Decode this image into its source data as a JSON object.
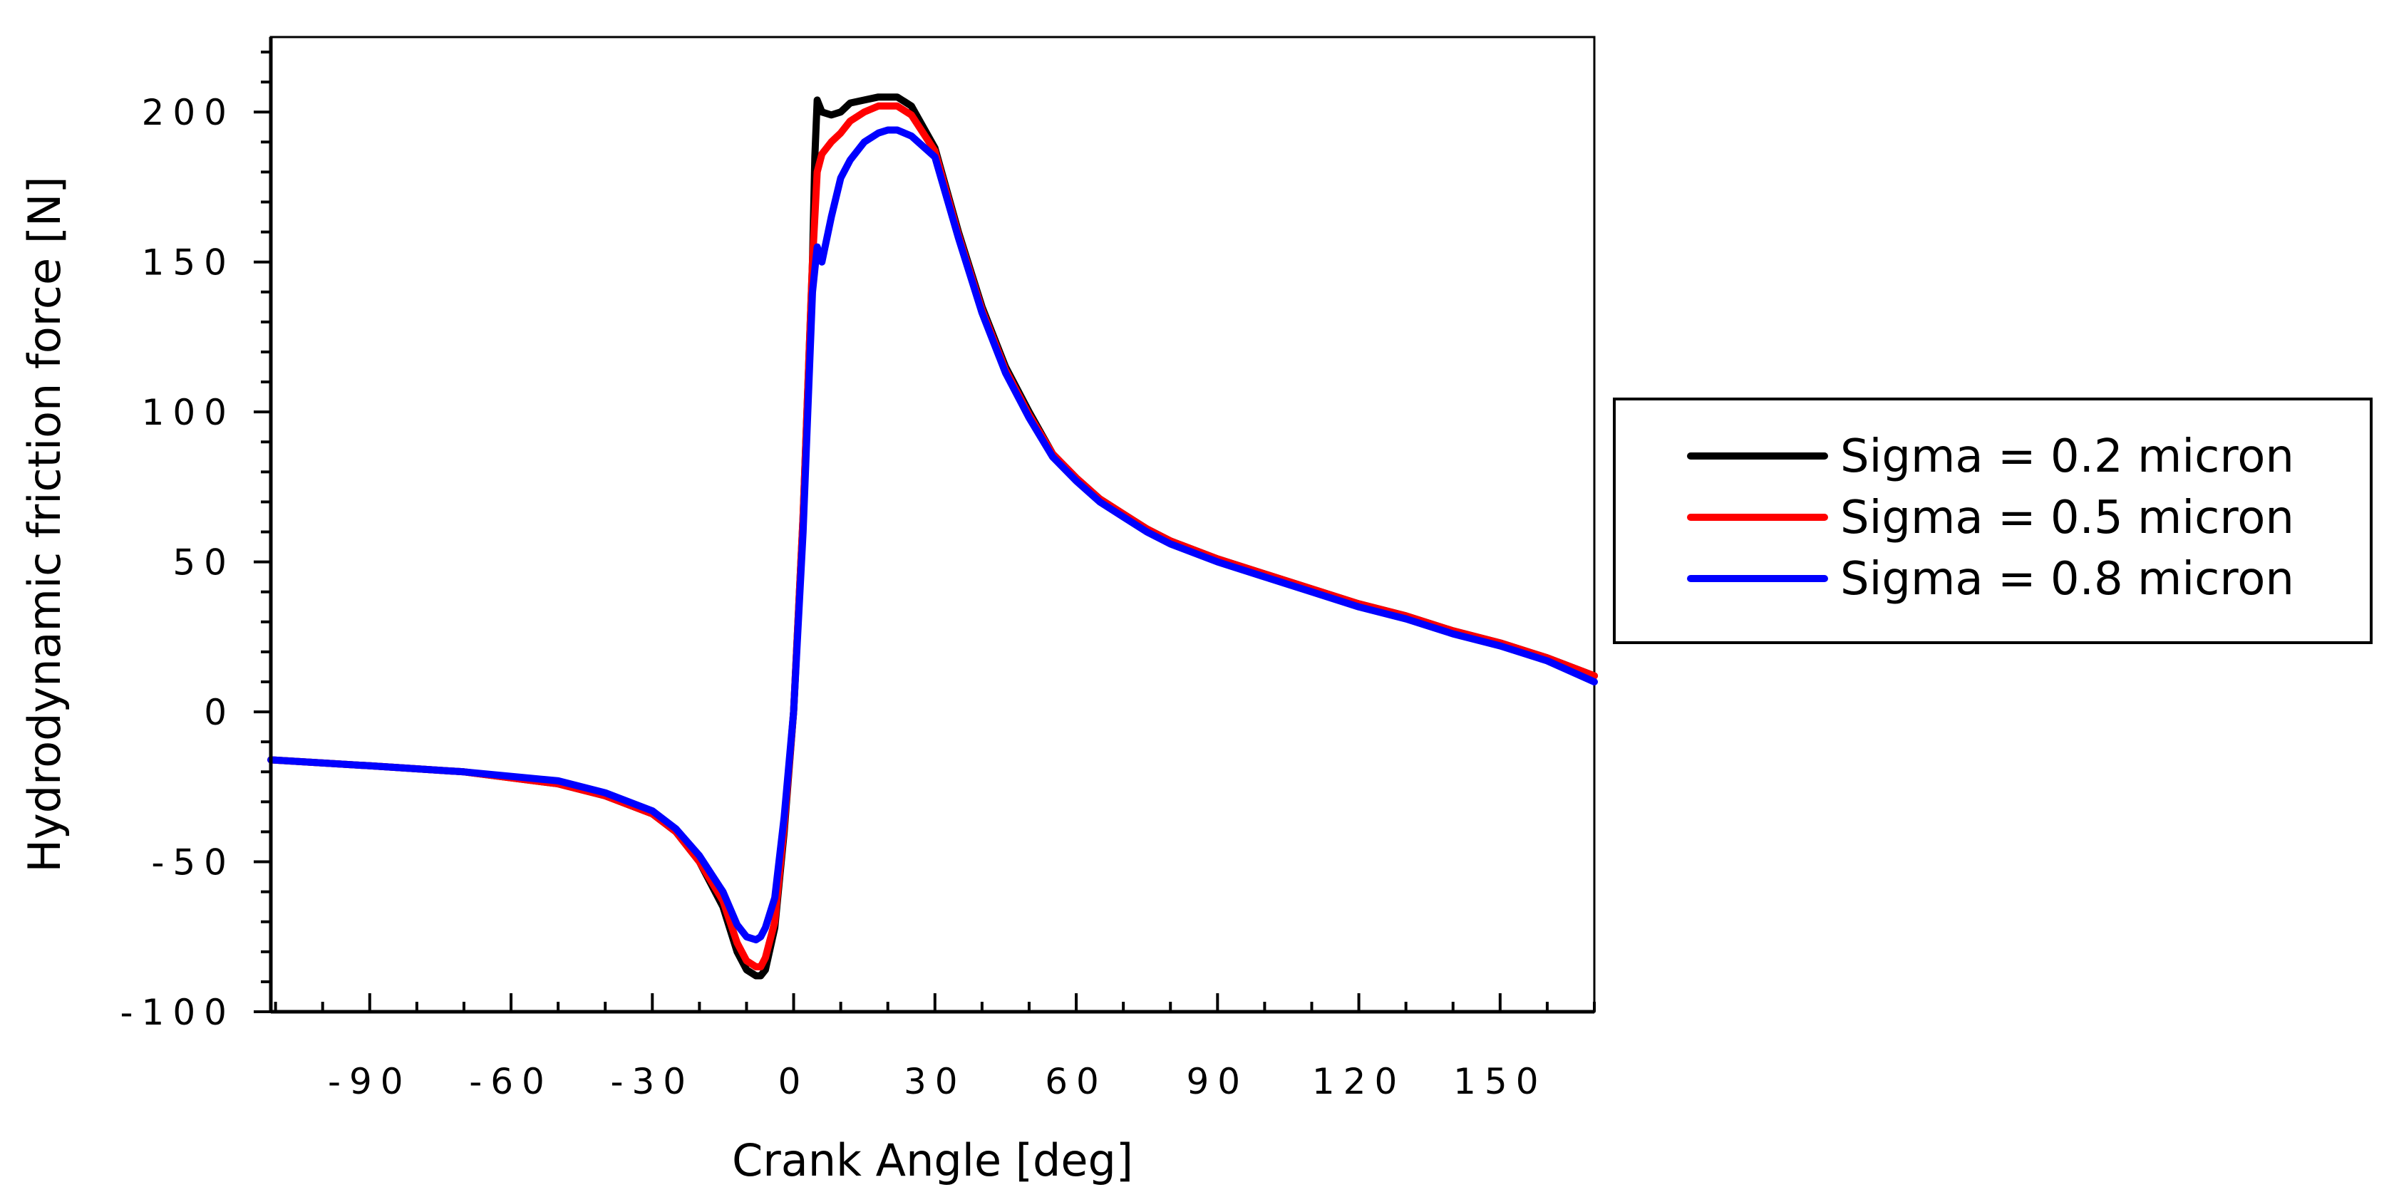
{
  "chart_data": {
    "type": "line",
    "title": "",
    "xlabel": "Crank Angle [deg]",
    "ylabel": "Hydrodynamic friction force [N]",
    "xlim": [
      -111,
      170
    ],
    "ylim": [
      -100,
      225
    ],
    "x_ticks": [
      -90,
      -60,
      -30,
      0,
      30,
      60,
      90,
      120,
      150
    ],
    "x_tick_labels": [
      "-90",
      "-60",
      "-30",
      "0",
      "30",
      "60",
      "90",
      "120",
      "150"
    ],
    "y_ticks": [
      -100,
      -50,
      0,
      50,
      100,
      150,
      200
    ],
    "y_tick_labels": [
      "-100",
      "-50",
      "0",
      "50",
      "100",
      "150",
      "200"
    ],
    "grid": false,
    "legend_position": "right",
    "series": [
      {
        "name": "Sigma = 0.2 micron",
        "color": "#000000",
        "x": [
          -111,
          -90,
          -70,
          -50,
          -40,
          -30,
          -25,
          -20,
          -15,
          -12,
          -10,
          -8,
          -7,
          -6,
          -4,
          -2,
          0,
          2,
          4,
          4.5,
          5,
          6,
          8,
          10,
          12,
          15,
          18,
          20,
          22,
          25,
          30,
          35,
          40,
          45,
          50,
          55,
          60,
          65,
          70,
          75,
          80,
          90,
          100,
          110,
          120,
          130,
          140,
          150,
          160,
          170
        ],
        "y": [
          -16,
          -18,
          -20,
          -24,
          -28,
          -34,
          -40,
          -50,
          -65,
          -80,
          -86,
          -88,
          -88,
          -86,
          -72,
          -40,
          0,
          65,
          150,
          185,
          204,
          200,
          199,
          200,
          203,
          204,
          205,
          205,
          205,
          202,
          188,
          160,
          135,
          115,
          100,
          86,
          78,
          71,
          66,
          61,
          57,
          51,
          46,
          41,
          36,
          32,
          27,
          23,
          18,
          12
        ]
      },
      {
        "name": "Sigma = 0.5 micron",
        "color": "#ff0000",
        "x": [
          -111,
          -90,
          -70,
          -50,
          -40,
          -30,
          -25,
          -20,
          -15,
          -12,
          -10,
          -8,
          -7,
          -6,
          -4,
          -2,
          0,
          2,
          4,
          5,
          6,
          8,
          10,
          12,
          15,
          18,
          20,
          22,
          25,
          30,
          35,
          40,
          45,
          50,
          55,
          60,
          65,
          70,
          75,
          80,
          90,
          100,
          110,
          120,
          130,
          140,
          150,
          160,
          170
        ],
        "y": [
          -16,
          -18,
          -20,
          -24,
          -28,
          -34,
          -40,
          -50,
          -63,
          -77,
          -83,
          -85,
          -85,
          -82,
          -70,
          -38,
          0,
          65,
          150,
          180,
          186,
          190,
          193,
          197,
          200,
          202,
          202,
          202,
          199,
          187,
          159,
          134,
          114,
          99,
          86,
          78,
          71,
          66,
          61,
          57,
          51,
          46,
          41,
          36,
          32,
          27,
          23,
          18,
          12
        ]
      },
      {
        "name": "Sigma = 0.8 micron",
        "color": "#0000ff",
        "x": [
          -111,
          -90,
          -70,
          -50,
          -40,
          -30,
          -25,
          -20,
          -15,
          -12,
          -10,
          -8,
          -7,
          -6,
          -4,
          -2,
          0,
          2,
          4,
          5,
          6,
          8,
          10,
          12,
          15,
          18,
          20,
          22,
          25,
          30,
          35,
          40,
          45,
          50,
          55,
          60,
          65,
          70,
          75,
          80,
          90,
          100,
          110,
          120,
          130,
          140,
          150,
          160,
          170
        ],
        "y": [
          -16,
          -18,
          -20,
          -23,
          -27,
          -33,
          -39,
          -48,
          -60,
          -71,
          -75,
          -76,
          -75,
          -72,
          -62,
          -35,
          0,
          60,
          140,
          155,
          150,
          165,
          178,
          184,
          190,
          193,
          194,
          194,
          192,
          185,
          158,
          133,
          113,
          98,
          85,
          77,
          70,
          65,
          60,
          56,
          50,
          45,
          40,
          35,
          31,
          26,
          22,
          17,
          10
        ]
      }
    ]
  }
}
